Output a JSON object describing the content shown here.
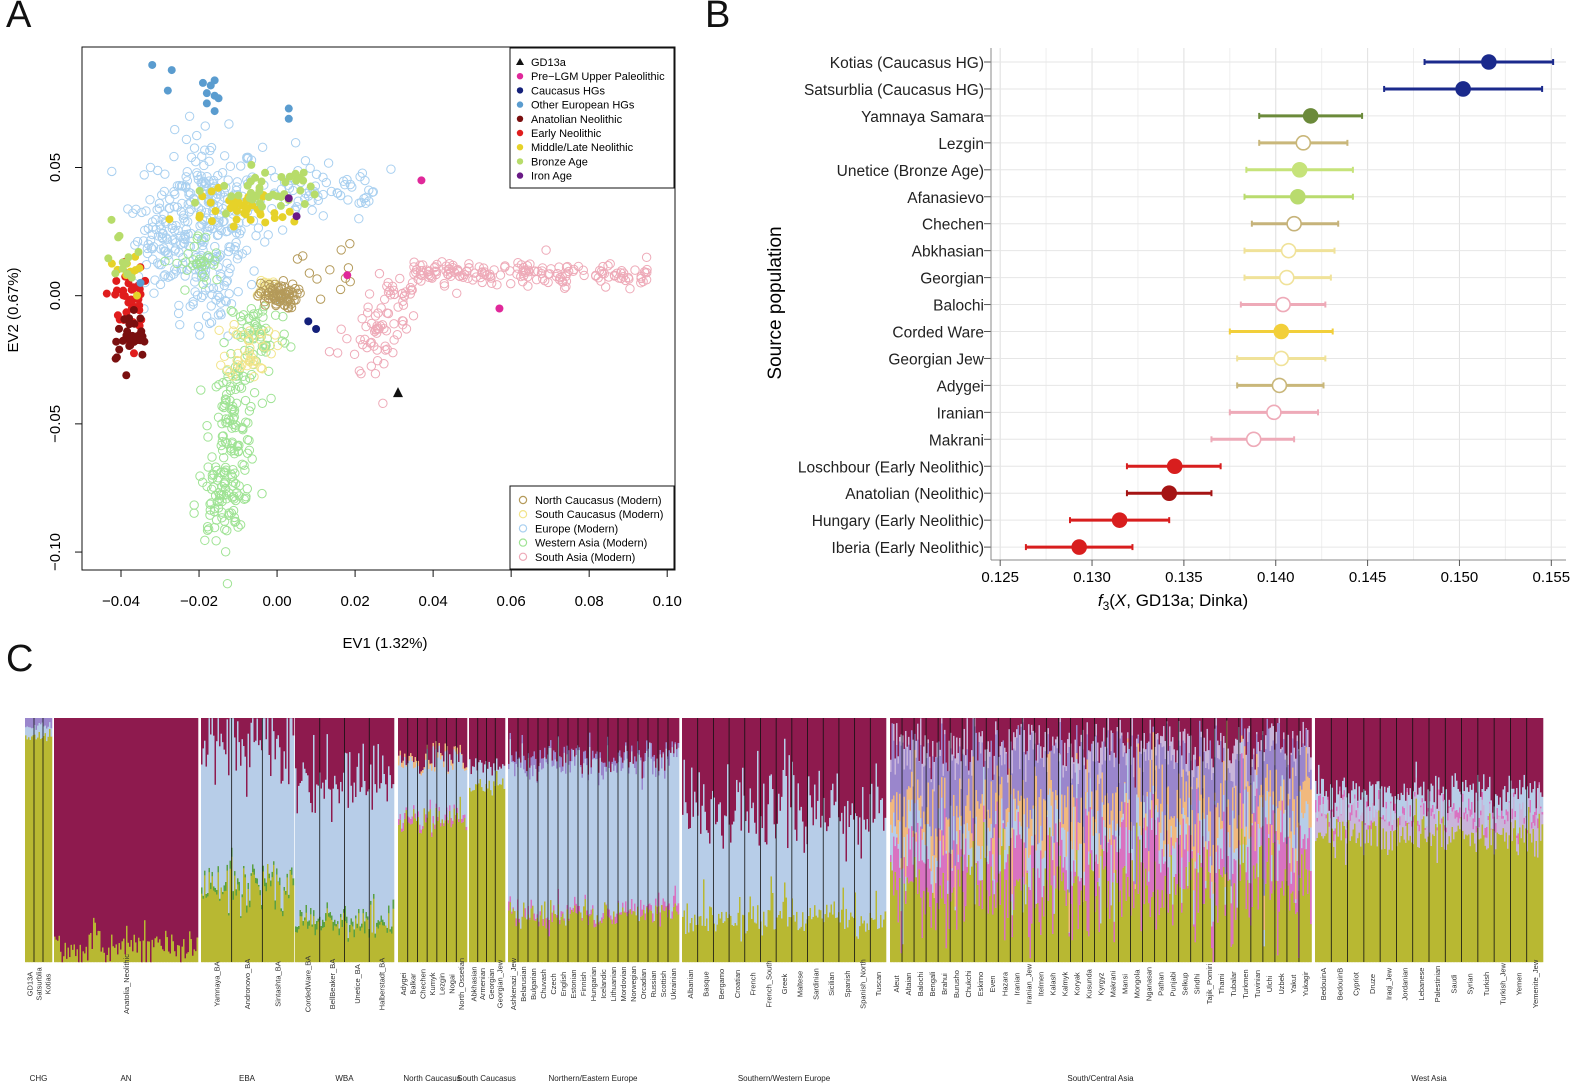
{
  "panels": {
    "a": "A",
    "b": "B",
    "c": "C"
  },
  "chart_data": [
    {
      "type": "scatter",
      "panel": "A",
      "xlabel": "EV1 (1.32%)",
      "ylabel": "EV2 (0.67%)",
      "xlim": [
        -0.05,
        0.102
      ],
      "ylim": [
        -0.107,
        0.097
      ],
      "xticks": [
        -0.04,
        -0.02,
        0.0,
        0.02,
        0.04,
        0.06,
        0.08,
        0.1
      ],
      "xtick_labels": [
        "−0.04",
        "−0.02",
        "0.00",
        "0.02",
        "0.04",
        "0.06",
        "0.08",
        "0.10"
      ],
      "yticks": [
        0.05,
        0.0,
        -0.05,
        -0.1
      ],
      "ytick_labels": [
        "0.05",
        "0.00",
        "−0.05",
        "−0.10"
      ],
      "legend_ancient": [
        {
          "label": "GD13a",
          "color": "#111111",
          "marker": "triangle"
        },
        {
          "label": "Pre−LGM Upper Paleolithic",
          "color": "#e0289a",
          "marker": "dot"
        },
        {
          "label": "Caucasus HGs",
          "color": "#14207a",
          "marker": "dot"
        },
        {
          "label": "Other European HGs",
          "color": "#5a9ccf",
          "marker": "dot"
        },
        {
          "label": "Anatolian Neolithic",
          "color": "#7a0f0f",
          "marker": "dot"
        },
        {
          "label": "Early Neolithic",
          "color": "#e01d1d",
          "marker": "dot"
        },
        {
          "label": "Middle/Late Neolithic",
          "color": "#e6d229",
          "marker": "dot"
        },
        {
          "label": "Bronze Age",
          "color": "#b7dc6a",
          "marker": "dot"
        },
        {
          "label": "Iron Age",
          "color": "#6a1a86",
          "marker": "dot"
        }
      ],
      "legend_modern": [
        {
          "label": "North Caucasus (Modern)",
          "color": "#b49a5a"
        },
        {
          "label": "South Caucasus (Modern)",
          "color": "#f2e48a"
        },
        {
          "label": "Europe (Modern)",
          "color": "#a9d0f0"
        },
        {
          "label": "Western Asia (Modern)",
          "color": "#9fe394"
        },
        {
          "label": "South Asia (Modern)",
          "color": "#eeaab8"
        }
      ],
      "points": [
        {
          "group": 0,
          "x": 0.031,
          "y": -0.038
        },
        {
          "group": 1,
          "x": 0.037,
          "y": 0.045
        },
        {
          "group": 1,
          "x": 0.018,
          "y": 0.008
        },
        {
          "group": 1,
          "x": 0.057,
          "y": -0.005
        },
        {
          "group": 2,
          "x": 0.008,
          "y": -0.01
        },
        {
          "group": 2,
          "x": 0.01,
          "y": -0.013
        },
        {
          "group": 3,
          "x": -0.032,
          "y": 0.09
        },
        {
          "group": 3,
          "x": -0.027,
          "y": 0.088
        },
        {
          "group": 3,
          "x": -0.028,
          "y": 0.08
        },
        {
          "group": 3,
          "x": -0.019,
          "y": 0.083
        },
        {
          "group": 3,
          "x": -0.017,
          "y": 0.082
        },
        {
          "group": 3,
          "x": -0.016,
          "y": 0.084
        },
        {
          "group": 3,
          "x": -0.018,
          "y": 0.079
        },
        {
          "group": 3,
          "x": -0.016,
          "y": 0.078
        },
        {
          "group": 3,
          "x": -0.015,
          "y": 0.077
        },
        {
          "group": 3,
          "x": -0.018,
          "y": 0.075
        },
        {
          "group": 3,
          "x": -0.016,
          "y": 0.072
        },
        {
          "group": 3,
          "x": 0.003,
          "y": 0.073
        },
        {
          "group": 3,
          "x": 0.003,
          "y": 0.069
        },
        {
          "group": 3,
          "x": -0.035,
          "y": 0.005
        },
        {
          "group": 8,
          "x": 0.005,
          "y": 0.031
        },
        {
          "group": 8,
          "x": 0.003,
          "y": 0.038
        }
      ]
    },
    {
      "type": "dot-errorbar",
      "panel": "B",
      "xlabel": "f3(X, GD13a; Dinka)",
      "ylabel": "Source population",
      "xlim": [
        0.1245,
        0.1558
      ],
      "xticks": [
        0.125,
        0.13,
        0.135,
        0.14,
        0.145,
        0.15,
        0.155
      ],
      "xtick_labels": [
        "0.125",
        "0.130",
        "0.135",
        "0.140",
        "0.145",
        "0.150",
        "0.155"
      ],
      "rows": [
        {
          "label": "Kotias (Caucasus HG)",
          "value": 0.1516,
          "lo": 0.1481,
          "hi": 0.1551,
          "color": "#1b2a8c",
          "filled": true
        },
        {
          "label": "Satsurblia (Caucasus HG)",
          "value": 0.1502,
          "lo": 0.1459,
          "hi": 0.1545,
          "color": "#1b2a8c",
          "filled": true
        },
        {
          "label": "Yamnaya Samara",
          "value": 0.1419,
          "lo": 0.1391,
          "hi": 0.1447,
          "color": "#6b8a3a",
          "filled": true
        },
        {
          "label": "Lezgin",
          "value": 0.1415,
          "lo": 0.1391,
          "hi": 0.1439,
          "color": "#c9b77a",
          "filled": false
        },
        {
          "label": "Unetice (Bronze Age)",
          "value": 0.1413,
          "lo": 0.1384,
          "hi": 0.1442,
          "color": "#c6e37a",
          "filled": true
        },
        {
          "label": "Afanasievo",
          "value": 0.1412,
          "lo": 0.1383,
          "hi": 0.1442,
          "color": "#b9db6e",
          "filled": true
        },
        {
          "label": "Chechen",
          "value": 0.141,
          "lo": 0.1387,
          "hi": 0.1434,
          "color": "#c6b37a",
          "filled": false
        },
        {
          "label": "Abkhasian",
          "value": 0.1407,
          "lo": 0.1383,
          "hi": 0.1432,
          "color": "#f0e299",
          "filled": false
        },
        {
          "label": "Georgian",
          "value": 0.1406,
          "lo": 0.1383,
          "hi": 0.143,
          "color": "#f0e299",
          "filled": false
        },
        {
          "label": "Balochi",
          "value": 0.1404,
          "lo": 0.1381,
          "hi": 0.1427,
          "color": "#eeaab8",
          "filled": false
        },
        {
          "label": "Corded Ware",
          "value": 0.1403,
          "lo": 0.1375,
          "hi": 0.1431,
          "color": "#f2cf3a",
          "filled": true
        },
        {
          "label": "Georgian Jew",
          "value": 0.1403,
          "lo": 0.1379,
          "hi": 0.1427,
          "color": "#f0e299",
          "filled": false
        },
        {
          "label": "Adygei",
          "value": 0.1402,
          "lo": 0.1379,
          "hi": 0.1426,
          "color": "#c9b77a",
          "filled": false
        },
        {
          "label": "Iranian",
          "value": 0.1399,
          "lo": 0.1375,
          "hi": 0.1423,
          "color": "#eeaab8",
          "filled": false
        },
        {
          "label": "Makrani",
          "value": 0.1388,
          "lo": 0.1365,
          "hi": 0.141,
          "color": "#eeaab8",
          "filled": false
        },
        {
          "label": "Loschbour (Early Neolithic)",
          "value": 0.1345,
          "lo": 0.1319,
          "hi": 0.137,
          "color": "#d81e1e",
          "filled": true
        },
        {
          "label": "Anatolian (Neolithic)",
          "value": 0.1342,
          "lo": 0.1319,
          "hi": 0.1365,
          "color": "#a51414",
          "filled": true
        },
        {
          "label": "Hungary (Early Neolithic)",
          "value": 0.1315,
          "lo": 0.1288,
          "hi": 0.1342,
          "color": "#d81e1e",
          "filled": true
        },
        {
          "label": "Iberia (Early Neolithic)",
          "value": 0.1293,
          "lo": 0.1264,
          "hi": 0.1322,
          "color": "#d81e1e",
          "filled": true
        }
      ]
    },
    {
      "type": "stacked-bar",
      "panel": "C",
      "component_colors": [
        "#b8b832",
        "#b7cde8",
        "#8e1a4e",
        "#9a86cc",
        "#f1b97e",
        "#d972c1",
        "#c9b5da",
        "#5aa042",
        "#8d8d8d"
      ],
      "column_labels": [
        "GD13A",
        "Satsurblia",
        "Kotias",
        "Anatolia_Neolithic",
        "Yamnaya_BA",
        "Andronovo_BA",
        "Sintashta_BA",
        "CordedWare_BA",
        "BellBeaker_BA",
        "Unetice_BA",
        "Halberstadt_BA",
        "Adygei",
        "Balkar",
        "Chechen",
        "Kumyk",
        "Lezgin",
        "Nogai",
        "North_Ossetian",
        "Abkhasian",
        "Armenian",
        "Georgian",
        "Georgian_Jew",
        "Ashkenazi_Jew",
        "Belarusian",
        "Bulgarian",
        "Chuvash",
        "Czech",
        "English",
        "Estonian",
        "Finnish",
        "Hungarian",
        "Icelandic",
        "Lithuanian",
        "Mordovian",
        "Norwegian",
        "Orcadian",
        "Russian",
        "Scottish",
        "Ukrainian",
        "Albanian",
        "Basque",
        "Bergamo",
        "Croatian",
        "French",
        "French_South",
        "Greek",
        "Maltese",
        "Sardinian",
        "Sicilian",
        "Spanish",
        "Spanish_North",
        "Tuscan",
        "Aleut",
        "Altaian",
        "Balochi",
        "Bengali",
        "Brahui",
        "Burusho",
        "Chukchi",
        "Eskimo",
        "Even",
        "Hazara",
        "Iranian",
        "Iranian_Jew",
        "Itelmen",
        "Kalash",
        "Kalmyk",
        "Koryak",
        "Kusunda",
        "Kyrgyz",
        "Makrani",
        "Mansi",
        "Mongola",
        "Nganasan",
        "Pathan",
        "Punjabi",
        "Selkup",
        "Sindhi",
        "Tajik_Pomiri",
        "Thami",
        "Tubalar",
        "Turkmen",
        "Tuvinian",
        "Ulchi",
        "Uzbek",
        "Yakut",
        "Yukagir",
        "BedouinA",
        "BedouinB",
        "Cypriot",
        "Druze",
        "Iraqi_Jew",
        "Jordanian",
        "Lebanese",
        "Palestinian",
        "Saudi",
        "Syrian",
        "Turkish",
        "Turkish_Jew",
        "Yemen",
        "Yemenite_Jew"
      ],
      "group_labels": [
        "CHG",
        "AN",
        "EBA",
        "WBA",
        "North Caucasus",
        "South Caucasus",
        "Northern/Eastern Europe",
        "Southern/Western Europe",
        "South/Central Asia",
        "West Asia"
      ]
    }
  ]
}
